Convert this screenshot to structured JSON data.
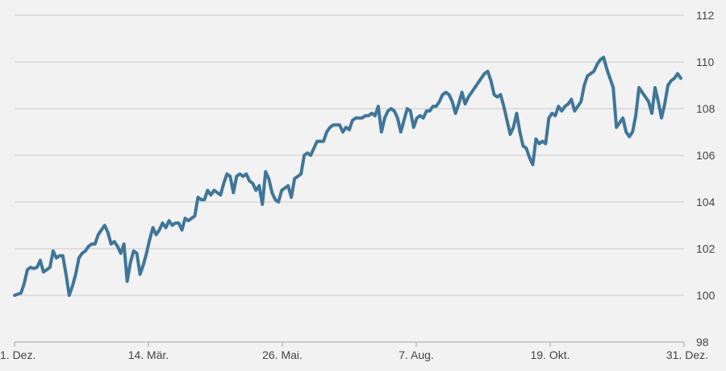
{
  "chart_data": {
    "type": "line",
    "title": "",
    "xlabel": "",
    "ylabel": "",
    "ylim": [
      98,
      112
    ],
    "yticks": [
      98,
      100,
      102,
      104,
      106,
      108,
      110,
      112
    ],
    "xticks": [
      "1. Dez.",
      "14. Mär.",
      "26. Mai.",
      "7. Aug.",
      "19. Okt.",
      "31. Dez."
    ],
    "grid": true,
    "legend": "none",
    "line_color": "#3f7699",
    "background": "#f2f2f2",
    "series": [
      {
        "values": [
          100.0,
          100.05,
          100.1,
          100.5,
          101.1,
          101.2,
          101.15,
          101.2,
          101.5,
          101.0,
          101.1,
          101.2,
          101.9,
          101.6,
          101.7,
          101.7,
          100.9,
          100.0,
          100.4,
          100.9,
          101.6,
          101.8,
          101.9,
          102.1,
          102.2,
          102.2,
          102.6,
          102.8,
          103.0,
          102.7,
          102.2,
          102.3,
          102.1,
          101.8,
          102.2,
          100.6,
          101.4,
          101.9,
          101.8,
          100.9,
          101.3,
          101.8,
          102.4,
          102.9,
          102.6,
          102.8,
          103.1,
          102.9,
          103.2,
          103.0,
          103.1,
          103.1,
          102.8,
          103.3,
          103.2,
          103.3,
          103.4,
          104.2,
          104.1,
          104.1,
          104.5,
          104.3,
          104.5,
          104.4,
          104.3,
          104.8,
          105.2,
          105.1,
          104.4,
          105.1,
          105.2,
          105.1,
          105.2,
          104.9,
          104.8,
          104.5,
          104.7,
          103.9,
          105.3,
          105.0,
          104.4,
          104.1,
          104.0,
          104.5,
          104.6,
          104.7,
          104.2,
          105.0,
          105.1,
          105.2,
          106.0,
          106.1,
          106.0,
          106.3,
          106.6,
          106.6,
          106.6,
          107.0,
          107.2,
          107.3,
          107.3,
          107.3,
          107.0,
          107.2,
          107.1,
          107.5,
          107.6,
          107.6,
          107.6,
          107.7,
          107.7,
          107.8,
          107.7,
          108.1,
          107.0,
          107.6,
          107.9,
          108.0,
          107.9,
          107.6,
          107.0,
          107.5,
          108.0,
          107.9,
          107.2,
          107.6,
          107.7,
          107.6,
          107.9,
          107.9,
          108.1,
          108.1,
          108.3,
          108.6,
          108.7,
          108.6,
          108.3,
          107.8,
          108.2,
          108.7,
          108.2,
          108.5,
          108.7,
          108.9,
          109.1,
          109.3,
          109.5,
          109.6,
          109.2,
          108.6,
          108.5,
          108.6,
          108.1,
          107.5,
          106.9,
          107.2,
          107.8,
          107.0,
          106.4,
          106.3,
          105.9,
          105.6,
          106.7,
          106.5,
          106.6,
          106.5,
          107.6,
          107.8,
          107.7,
          108.1,
          107.9,
          108.1,
          108.2,
          108.4,
          107.9,
          108.1,
          108.3,
          109.0,
          109.4,
          109.5,
          109.6,
          109.9,
          110.1,
          110.2,
          109.7,
          109.3,
          108.9,
          107.2,
          107.4,
          107.6,
          107.0,
          106.8,
          107.0,
          107.7,
          108.9,
          108.7,
          108.5,
          108.3,
          107.8,
          108.9,
          108.3,
          107.6,
          108.2,
          109.0,
          109.2,
          109.3,
          109.5,
          109.3
        ]
      }
    ]
  }
}
